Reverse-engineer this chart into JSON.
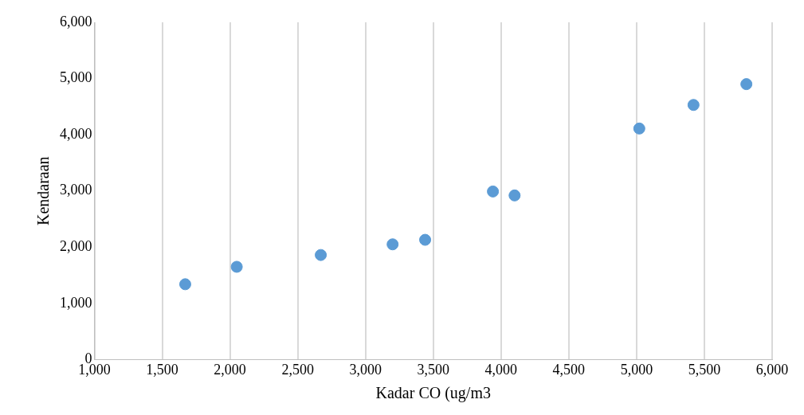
{
  "chart_data": {
    "type": "scatter",
    "xlabel": "Kadar CO (ug/m3",
    "ylabel": "Kendaraan",
    "x": [
      1670,
      2050,
      2670,
      3200,
      3440,
      3940,
      4100,
      5020,
      5420,
      5810
    ],
    "series": [
      {
        "color": "#5b9bd5",
        "values": [
          1340,
          1650,
          1860,
          2050,
          2130,
          2990,
          2920,
          4110,
          4530,
          4900
        ]
      }
    ],
    "xlim": [
      1000,
      6000
    ],
    "xticks": [
      {
        "value": 1000,
        "label": "1,000"
      },
      {
        "value": 1500,
        "label": "1,500"
      },
      {
        "value": 2000,
        "label": "2,000"
      },
      {
        "value": 2500,
        "label": "2,500"
      },
      {
        "value": 3000,
        "label": "3,000"
      },
      {
        "value": 3500,
        "label": "3,500"
      },
      {
        "value": 4000,
        "label": "4,000"
      },
      {
        "value": 4500,
        "label": "4,500"
      },
      {
        "value": 5000,
        "label": "5,000"
      },
      {
        "value": 5500,
        "label": "5,500"
      },
      {
        "value": 6000,
        "label": "6,000"
      }
    ],
    "ylim": [
      0,
      6000
    ],
    "yticks": [
      0,
      {
        "value": 1000,
        "label": "1,000"
      },
      {
        "value": 2000,
        "label": "2,000"
      },
      {
        "value": 3000,
        "label": "3,000"
      },
      {
        "value": 4000,
        "label": "4,000"
      },
      {
        "value": 5000,
        "label": "5,000"
      },
      {
        "value": 6000,
        "label": "6,000"
      }
    ],
    "grid": "x",
    "marker": "circle",
    "legend": false
  }
}
